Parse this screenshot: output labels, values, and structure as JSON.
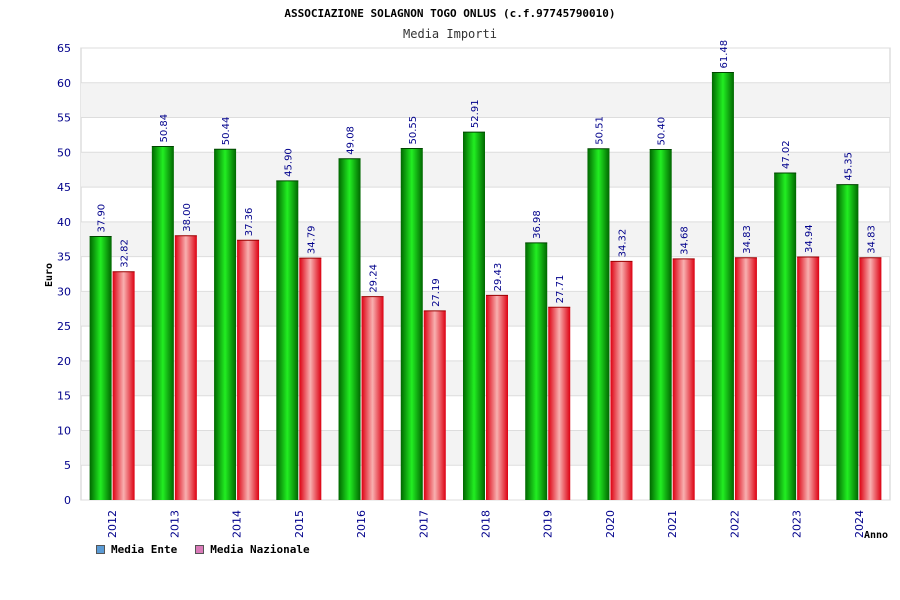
{
  "chart_data": {
    "type": "bar",
    "title": "ASSOCIAZIONE SOLAGNON TOGO ONLUS (c.f.97745790010)",
    "subtitle": "Media Importi",
    "xlabel": "Anno",
    "ylabel": "Euro",
    "ylim": [
      0,
      65
    ],
    "yticks": [
      0,
      5,
      10,
      15,
      20,
      25,
      30,
      35,
      40,
      45,
      50,
      55,
      60,
      65
    ],
    "grid": true,
    "legend_position": "bottom-left",
    "categories": [
      "2012",
      "2013",
      "2014",
      "2015",
      "2016",
      "2017",
      "2018",
      "2019",
      "2020",
      "2021",
      "2022",
      "2023",
      "2024"
    ],
    "series": [
      {
        "name": "Media Ente",
        "color": "#00cc00",
        "legend_color": "#5b9bd5",
        "values": [
          37.9,
          50.84,
          50.44,
          45.9,
          49.08,
          50.55,
          52.91,
          36.98,
          50.51,
          50.4,
          61.48,
          47.02,
          45.35
        ],
        "labels": [
          "37.90",
          "50.84",
          "50.44",
          "45.90",
          "49.08",
          "50.55",
          "52.91",
          "36.98",
          "50.51",
          "50.40",
          "61.48",
          "47.02",
          "45.35"
        ]
      },
      {
        "name": "Media Nazionale",
        "color": "#ee1122",
        "legend_color": "#d97ab8",
        "values": [
          32.82,
          38.0,
          37.36,
          34.79,
          29.24,
          27.19,
          29.43,
          27.71,
          34.32,
          34.68,
          34.83,
          34.94,
          34.83
        ],
        "labels": [
          "32.82",
          "38.00",
          "37.36",
          "34.79",
          "29.24",
          "27.19",
          "29.43",
          "27.71",
          "34.32",
          "34.68",
          "34.83",
          "34.94",
          "34.83"
        ]
      }
    ]
  }
}
